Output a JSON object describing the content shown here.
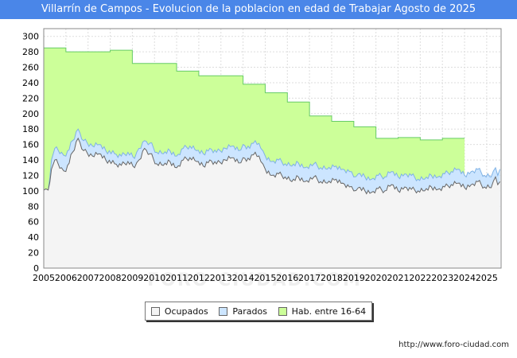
{
  "chart_data": {
    "type": "area",
    "title": "Villarrín de Campos - Evolucion de la poblacion en edad de Trabajar Agosto de 2025",
    "xlabel": "",
    "ylabel": "",
    "xlim": [
      2005,
      2025.65
    ],
    "ylim": [
      0,
      310
    ],
    "yticks": [
      0,
      20,
      40,
      60,
      80,
      100,
      120,
      140,
      160,
      180,
      200,
      220,
      240,
      260,
      280,
      300
    ],
    "xticks": [
      "2005",
      "2006",
      "2007",
      "2008",
      "2009",
      "2010",
      "2011",
      "2012",
      "2013",
      "2014",
      "2015",
      "2016",
      "2017",
      "2018",
      "2019",
      "2020",
      "2021",
      "2022",
      "2023",
      "2024",
      "2025"
    ],
    "grid": true,
    "legend_position": "bottom",
    "series": [
      {
        "name": "Hab. entre 16-64",
        "color": "#ccff99",
        "line_color": "#66cc66",
        "step": true,
        "years": [
          2005,
          2006,
          2007,
          2008,
          2009,
          2010,
          2011,
          2012,
          2013,
          2014,
          2015,
          2016,
          2017,
          2018,
          2019,
          2020,
          2021,
          2022,
          2023,
          2024
        ],
        "values": [
          285,
          280,
          280,
          282,
          265,
          265,
          255,
          249,
          249,
          238,
          227,
          215,
          197,
          190,
          183,
          168,
          169,
          166,
          168,
          0
        ]
      },
      {
        "name": "Parados",
        "color": "#cce5ff",
        "line_color": "#7fb2e5",
        "keyframes": [
          [
            2005.0,
            101
          ],
          [
            2005.2,
            101
          ],
          [
            2005.35,
            140
          ],
          [
            2005.5,
            155
          ],
          [
            2005.8,
            150
          ],
          [
            2006.0,
            145
          ],
          [
            2006.3,
            165
          ],
          [
            2006.55,
            180
          ],
          [
            2006.8,
            165
          ],
          [
            2007.2,
            158
          ],
          [
            2007.5,
            160
          ],
          [
            2007.8,
            152
          ],
          [
            2008.2,
            148
          ],
          [
            2008.5,
            145
          ],
          [
            2008.8,
            150
          ],
          [
            2009.1,
            142
          ],
          [
            2009.3,
            155
          ],
          [
            2009.55,
            165
          ],
          [
            2009.8,
            162
          ],
          [
            2010.1,
            150
          ],
          [
            2010.4,
            148
          ],
          [
            2010.7,
            152
          ],
          [
            2011.0,
            145
          ],
          [
            2011.3,
            155
          ],
          [
            2011.6,
            158
          ],
          [
            2011.9,
            152
          ],
          [
            2012.2,
            148
          ],
          [
            2012.5,
            155
          ],
          [
            2012.8,
            150
          ],
          [
            2013.2,
            155
          ],
          [
            2013.5,
            158
          ],
          [
            2013.8,
            152
          ],
          [
            2014.0,
            160
          ],
          [
            2014.3,
            155
          ],
          [
            2014.55,
            165
          ],
          [
            2014.8,
            155
          ],
          [
            2015.0,
            145
          ],
          [
            2015.3,
            138
          ],
          [
            2015.6,
            140
          ],
          [
            2015.9,
            135
          ],
          [
            2016.2,
            132
          ],
          [
            2016.5,
            136
          ],
          [
            2016.8,
            130
          ],
          [
            2017.2,
            135
          ],
          [
            2017.5,
            130
          ],
          [
            2017.8,
            128
          ],
          [
            2018.2,
            132
          ],
          [
            2018.5,
            128
          ],
          [
            2018.8,
            125
          ],
          [
            2019.0,
            118
          ],
          [
            2019.2,
            122
          ],
          [
            2019.5,
            118
          ],
          [
            2019.8,
            115
          ],
          [
            2020.1,
            120
          ],
          [
            2020.4,
            118
          ],
          [
            2020.7,
            125
          ],
          [
            2021.0,
            118
          ],
          [
            2021.3,
            122
          ],
          [
            2021.6,
            120
          ],
          [
            2021.9,
            115
          ],
          [
            2022.2,
            115
          ],
          [
            2022.5,
            120
          ],
          [
            2022.8,
            118
          ],
          [
            2023.1,
            122
          ],
          [
            2023.4,
            125
          ],
          [
            2023.7,
            128
          ],
          [
            2024.0,
            120
          ],
          [
            2024.3,
            125
          ],
          [
            2024.6,
            128
          ],
          [
            2024.9,
            120
          ],
          [
            2025.2,
            118
          ],
          [
            2025.4,
            130
          ],
          [
            2025.5,
            120
          ],
          [
            2025.6,
            128
          ]
        ]
      },
      {
        "name": "Ocupados",
        "color": "#f4f4f4",
        "line_color": "#666666",
        "keyframes": [
          [
            2005.0,
            101
          ],
          [
            2005.2,
            101
          ],
          [
            2005.35,
            128
          ],
          [
            2005.5,
            140
          ],
          [
            2005.8,
            130
          ],
          [
            2006.0,
            125
          ],
          [
            2006.3,
            150
          ],
          [
            2006.55,
            168
          ],
          [
            2006.8,
            152
          ],
          [
            2007.2,
            145
          ],
          [
            2007.5,
            148
          ],
          [
            2007.8,
            140
          ],
          [
            2008.2,
            135
          ],
          [
            2008.5,
            133
          ],
          [
            2008.8,
            138
          ],
          [
            2009.1,
            130
          ],
          [
            2009.3,
            140
          ],
          [
            2009.55,
            155
          ],
          [
            2009.8,
            148
          ],
          [
            2010.1,
            135
          ],
          [
            2010.4,
            133
          ],
          [
            2010.7,
            138
          ],
          [
            2011.0,
            130
          ],
          [
            2011.3,
            140
          ],
          [
            2011.6,
            143
          ],
          [
            2011.9,
            138
          ],
          [
            2012.2,
            132
          ],
          [
            2012.5,
            140
          ],
          [
            2012.8,
            135
          ],
          [
            2013.2,
            140
          ],
          [
            2013.5,
            143
          ],
          [
            2013.8,
            136
          ],
          [
            2014.0,
            143
          ],
          [
            2014.3,
            140
          ],
          [
            2014.55,
            150
          ],
          [
            2014.8,
            138
          ],
          [
            2015.0,
            128
          ],
          [
            2015.3,
            120
          ],
          [
            2015.6,
            122
          ],
          [
            2015.9,
            118
          ],
          [
            2016.2,
            112
          ],
          [
            2016.5,
            118
          ],
          [
            2016.8,
            112
          ],
          [
            2017.2,
            118
          ],
          [
            2017.5,
            112
          ],
          [
            2017.8,
            110
          ],
          [
            2018.2,
            115
          ],
          [
            2018.5,
            110
          ],
          [
            2018.8,
            105
          ],
          [
            2019.0,
            100
          ],
          [
            2019.2,
            104
          ],
          [
            2019.5,
            100
          ],
          [
            2019.8,
            98
          ],
          [
            2020.1,
            103
          ],
          [
            2020.4,
            100
          ],
          [
            2020.7,
            108
          ],
          [
            2021.0,
            100
          ],
          [
            2021.3,
            105
          ],
          [
            2021.6,
            102
          ],
          [
            2021.9,
            100
          ],
          [
            2022.2,
            100
          ],
          [
            2022.5,
            105
          ],
          [
            2022.8,
            102
          ],
          [
            2023.1,
            105
          ],
          [
            2023.4,
            108
          ],
          [
            2023.7,
            110
          ],
          [
            2024.0,
            104
          ],
          [
            2024.3,
            108
          ],
          [
            2024.6,
            112
          ],
          [
            2024.9,
            105
          ],
          [
            2025.2,
            104
          ],
          [
            2025.4,
            118
          ],
          [
            2025.5,
            108
          ],
          [
            2025.6,
            112
          ]
        ]
      }
    ]
  },
  "legend": {
    "ocupados": "Ocupados",
    "parados": "Parados",
    "hab": "Hab. entre 16-64"
  },
  "colors": {
    "ocupados": "#f4f4f4",
    "parados": "#cce5ff",
    "hab": "#ccff99"
  },
  "footer": {
    "url": "http://www.foro-ciudad.com"
  },
  "watermark": "FORO-CIUDAD.COM"
}
